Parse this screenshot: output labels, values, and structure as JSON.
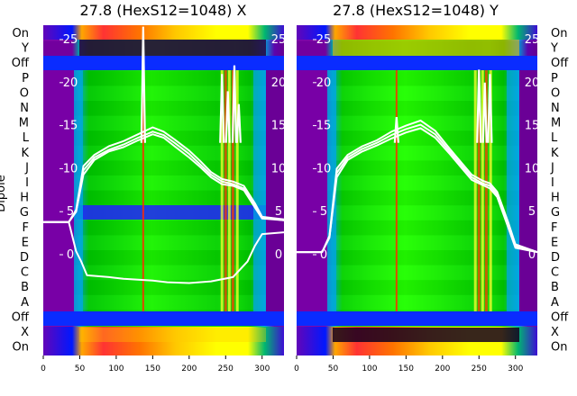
{
  "figure": {
    "ylabel": "Dipole",
    "row_labels": [
      "On",
      "Y",
      "Off",
      "P",
      "O",
      "N",
      "M",
      "L",
      "K",
      "J",
      "I",
      "H",
      "G",
      "F",
      "E",
      "D",
      "C",
      "B",
      "A",
      "Off",
      "X",
      "On"
    ]
  },
  "colors": {
    "line": "#ffffff",
    "colormap": [
      "#000000",
      "#3b0060",
      "#7a00a8",
      "#0018ff",
      "#00a6e0",
      "#00c800",
      "#22ff00",
      "#ffff00",
      "#ff9000",
      "#ff0000",
      "#ffffff"
    ]
  },
  "chart_data": [
    {
      "type": "heatmap",
      "title": "27.8 (HexS12=1048) X",
      "x_ticks": [
        0,
        50,
        100,
        150,
        200,
        250,
        300
      ],
      "x_range": [
        0,
        330
      ],
      "y_ticks": [
        0,
        5,
        10,
        15,
        20,
        25
      ],
      "y_range": [
        -7,
        27
      ],
      "rows": {
        "bands": [
          {
            "label": "On",
            "level": 0.8
          },
          {
            "label": "X",
            "level": 0.15
          },
          {
            "label": "Off",
            "level": 0.28
          },
          {
            "label": "A",
            "level": 0.55
          },
          {
            "label": "G",
            "level": 0.25
          },
          {
            "label": "Off",
            "level": 0.28
          },
          {
            "label": "Y",
            "level": 0.05
          },
          {
            "label": "On",
            "level": 0.72
          }
        ]
      },
      "series": [
        {
          "x": [
            0,
            35,
            45,
            55,
            70,
            90,
            110,
            130,
            150,
            165,
            180,
            200,
            215,
            230,
            245,
            260,
            275,
            290,
            300,
            330
          ],
          "y": [
            3.8,
            3.8,
            5.0,
            9.8,
            11.3,
            12.2,
            12.8,
            13.6,
            14.3,
            13.9,
            13.0,
            11.7,
            10.5,
            9.3,
            8.5,
            8.2,
            7.7,
            5.7,
            4.3,
            4.0
          ]
        },
        {
          "x": [
            0,
            35,
            45,
            55,
            70,
            90,
            110,
            130,
            150,
            165,
            180,
            200,
            215,
            230,
            245,
            260,
            275,
            290,
            300,
            330
          ],
          "y": [
            3.8,
            3.8,
            5.0,
            9.3,
            11.0,
            12.0,
            12.5,
            13.3,
            14.0,
            13.6,
            12.6,
            11.3,
            10.2,
            9.0,
            8.2,
            8.0,
            7.5,
            5.5,
            4.2,
            4.0
          ]
        },
        {
          "x": [
            0,
            35,
            45,
            55,
            70,
            90,
            110,
            130,
            150,
            165,
            180,
            200,
            215,
            230,
            245,
            260,
            275,
            290,
            300,
            330
          ],
          "y": [
            3.8,
            3.8,
            5.2,
            10.3,
            11.6,
            12.6,
            13.2,
            14.0,
            14.8,
            14.3,
            13.4,
            12.1,
            10.9,
            9.6,
            8.8,
            8.5,
            8.0,
            6.0,
            4.4,
            4.1
          ]
        },
        {
          "x": [
            0,
            35,
            45,
            52,
            60,
            75,
            90,
            110,
            130,
            150,
            170,
            200,
            230,
            260,
            280,
            290,
            300,
            330
          ],
          "y": [
            3.8,
            3.8,
            0.4,
            -0.8,
            -2.4,
            -2.5,
            -2.6,
            -2.8,
            -2.9,
            -3.0,
            -3.2,
            -3.3,
            -3.1,
            -2.6,
            -0.8,
            1.0,
            2.4,
            2.6
          ]
        }
      ],
      "spikes": [
        {
          "x": 137,
          "y_top": 26.5
        },
        {
          "x": 245,
          "y_top": 21.0
        },
        {
          "x": 253,
          "y_top": 19.0
        },
        {
          "x": 262,
          "y_top": 22.0
        },
        {
          "x": 268,
          "y_top": 17.5
        }
      ]
    },
    {
      "type": "heatmap",
      "title": "27.8 (HexS12=1048) Y",
      "x_ticks": [
        0,
        50,
        100,
        150,
        200,
        250,
        300
      ],
      "x_range": [
        0,
        330
      ],
      "y_ticks": [
        0,
        5,
        10,
        15,
        20,
        25
      ],
      "y_range": [
        -7,
        27
      ],
      "rows": {
        "bands": [
          {
            "label": "On",
            "level": 0.78
          },
          {
            "label": "X",
            "level": 0.05
          },
          {
            "label": "Off",
            "level": 0.28
          },
          {
            "label": "A",
            "level": 0.55
          },
          {
            "label": "Off",
            "level": 0.28
          },
          {
            "label": "Y",
            "level": 0.12
          },
          {
            "label": "On",
            "level": 0.82
          }
        ]
      },
      "series": [
        {
          "x": [
            0,
            35,
            45,
            55,
            70,
            90,
            110,
            130,
            150,
            170,
            190,
            210,
            225,
            240,
            255,
            265,
            275,
            290,
            300,
            330
          ],
          "y": [
            0.3,
            0.3,
            2.0,
            9.5,
            11.3,
            12.3,
            13.0,
            13.9,
            14.6,
            15.1,
            14.0,
            12.0,
            10.5,
            9.0,
            8.3,
            8.0,
            7.0,
            3.5,
            1.0,
            0.3
          ]
        },
        {
          "x": [
            0,
            35,
            45,
            55,
            70,
            90,
            110,
            130,
            150,
            170,
            190,
            210,
            225,
            240,
            255,
            265,
            275,
            290,
            300,
            330
          ],
          "y": [
            0.3,
            0.3,
            2.0,
            9.0,
            11.0,
            12.0,
            12.7,
            13.5,
            14.2,
            14.7,
            13.6,
            11.7,
            10.2,
            8.7,
            8.1,
            7.7,
            6.7,
            3.2,
            0.8,
            0.3
          ]
        },
        {
          "x": [
            0,
            35,
            45,
            55,
            70,
            90,
            110,
            130,
            150,
            170,
            190,
            210,
            225,
            240,
            255,
            265,
            275,
            290,
            300,
            330
          ],
          "y": [
            0.3,
            0.3,
            2.2,
            10.0,
            11.6,
            12.6,
            13.3,
            14.3,
            15.0,
            15.6,
            14.4,
            12.3,
            10.8,
            9.3,
            8.6,
            8.3,
            7.3,
            3.8,
            1.2,
            0.3
          ]
        }
      ],
      "spikes": [
        {
          "x": 137,
          "y_top": 16.0
        },
        {
          "x": 250,
          "y_top": 21.5
        },
        {
          "x": 258,
          "y_top": 20.0
        },
        {
          "x": 265,
          "y_top": 21.0
        }
      ]
    }
  ]
}
